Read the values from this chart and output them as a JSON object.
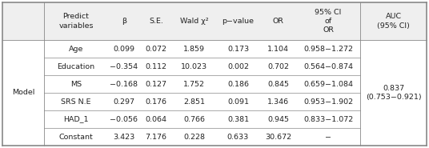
{
  "header_row": [
    "Predict\nvariables",
    "β",
    "S.E.",
    "Wald χ²",
    "p−value",
    "OR",
    "95% CI\nof\nOR",
    "AUC\n(95% CI)"
  ],
  "left_label": "Model",
  "rows": [
    [
      "Age",
      "0.099",
      "0.072",
      "1.859",
      "0.173",
      "1.104",
      "0.958−1.272",
      ""
    ],
    [
      "Education",
      "−0.354",
      "0.112",
      "10.023",
      "0.002",
      "0.702",
      "0.564−0.874",
      ""
    ],
    [
      "MS",
      "−0.168",
      "0.127",
      "1.752",
      "0.186",
      "0.845",
      "0.659−1.084",
      "0.837\n(0.753−0.921)"
    ],
    [
      "SRS N.E",
      "0.297",
      "0.176",
      "2.851",
      "0.091",
      "1.346",
      "0.953−1.902",
      ""
    ],
    [
      "HAD_1",
      "−0.056",
      "0.064",
      "0.766",
      "0.381",
      "0.945",
      "0.833−1.072",
      ""
    ],
    [
      "Constant",
      "3.423",
      "7.176",
      "0.228",
      "0.633",
      "30.672",
      "−",
      ""
    ]
  ],
  "bg_color": "#ffffff",
  "header_bg": "#efefef",
  "line_color": "#888888",
  "text_color": "#222222",
  "font_size": 6.8,
  "auc_text": "0.837\n(0.753−0.921)"
}
